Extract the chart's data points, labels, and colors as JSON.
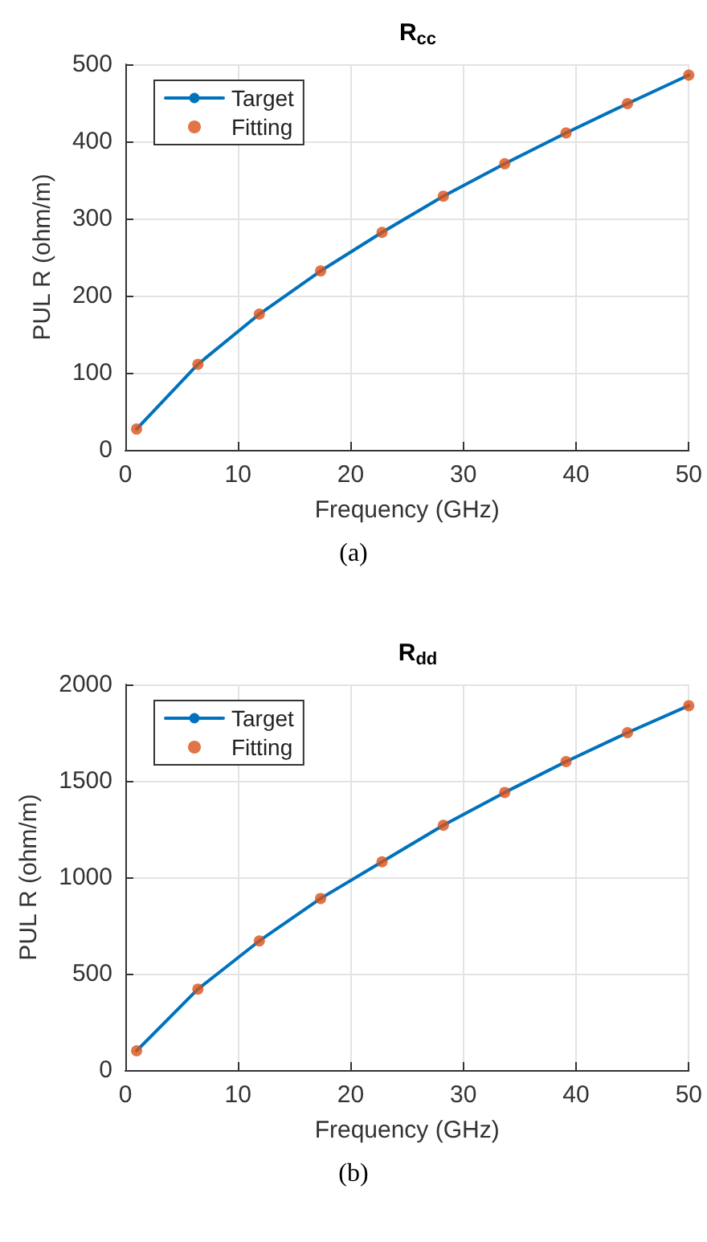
{
  "chart_data": [
    {
      "type": "line",
      "title": "R$_{cc}$",
      "xlabel": "Frequency (GHz)",
      "ylabel": "PUL R (ohm/m)",
      "annotations": [
        "(a)"
      ],
      "xlim": [
        0,
        50
      ],
      "xticks": [
        0,
        10,
        20,
        30,
        40,
        50
      ],
      "ylim": [
        0,
        500
      ],
      "yticks": [
        0,
        100,
        200,
        300,
        400,
        500
      ],
      "grid": true,
      "legend": "top left",
      "series": [
        {
          "name": "Target",
          "color": "#0072bd",
          "marker": "none",
          "line_style": "solid",
          "x": [
            1,
            6.44,
            11.89,
            17.33,
            22.78,
            28.22,
            33.67,
            39.11,
            44.56,
            50
          ],
          "values": [
            27,
            111,
            176,
            232,
            282,
            329,
            371,
            411,
            449,
            486
          ]
        },
        {
          "name": "Fitting",
          "type": "scatter",
          "color": "#d95319",
          "marker": "circle",
          "x": [
            1,
            6.44,
            11.89,
            17.33,
            22.78,
            28.22,
            33.67,
            39.11,
            44.56,
            50
          ],
          "values": [
            27,
            111,
            176,
            232,
            282,
            329,
            371,
            411,
            449,
            486
          ]
        }
      ]
    },
    {
      "type": "line",
      "title": "R$_{dd}$",
      "xlabel": "Frequency (GHz)",
      "ylabel": "PUL R (ohm/m)",
      "annotations": [
        "(b)"
      ],
      "xlim": [
        0,
        50
      ],
      "xticks": [
        0,
        10,
        20,
        30,
        40,
        50
      ],
      "ylim": [
        0,
        2000
      ],
      "yticks": [
        0,
        500,
        1000,
        1500,
        2000
      ],
      "grid": true,
      "legend": "top left",
      "series": [
        {
          "name": "Target",
          "color": "#0072bd",
          "marker": "none",
          "line_style": "solid",
          "x": [
            1,
            6.44,
            11.89,
            17.33,
            22.78,
            28.22,
            33.67,
            39.11,
            44.56,
            50
          ],
          "values": [
            100,
            420,
            670,
            890,
            1080,
            1270,
            1440,
            1600,
            1750,
            1890
          ]
        },
        {
          "name": "Fitting",
          "type": "scatter",
          "color": "#d95319",
          "marker": "circle",
          "x": [
            1,
            6.44,
            11.89,
            17.33,
            22.78,
            28.22,
            33.67,
            39.11,
            44.56,
            50
          ],
          "values": [
            100,
            420,
            670,
            890,
            1080,
            1270,
            1440,
            1600,
            1750,
            1890
          ]
        }
      ]
    }
  ]
}
